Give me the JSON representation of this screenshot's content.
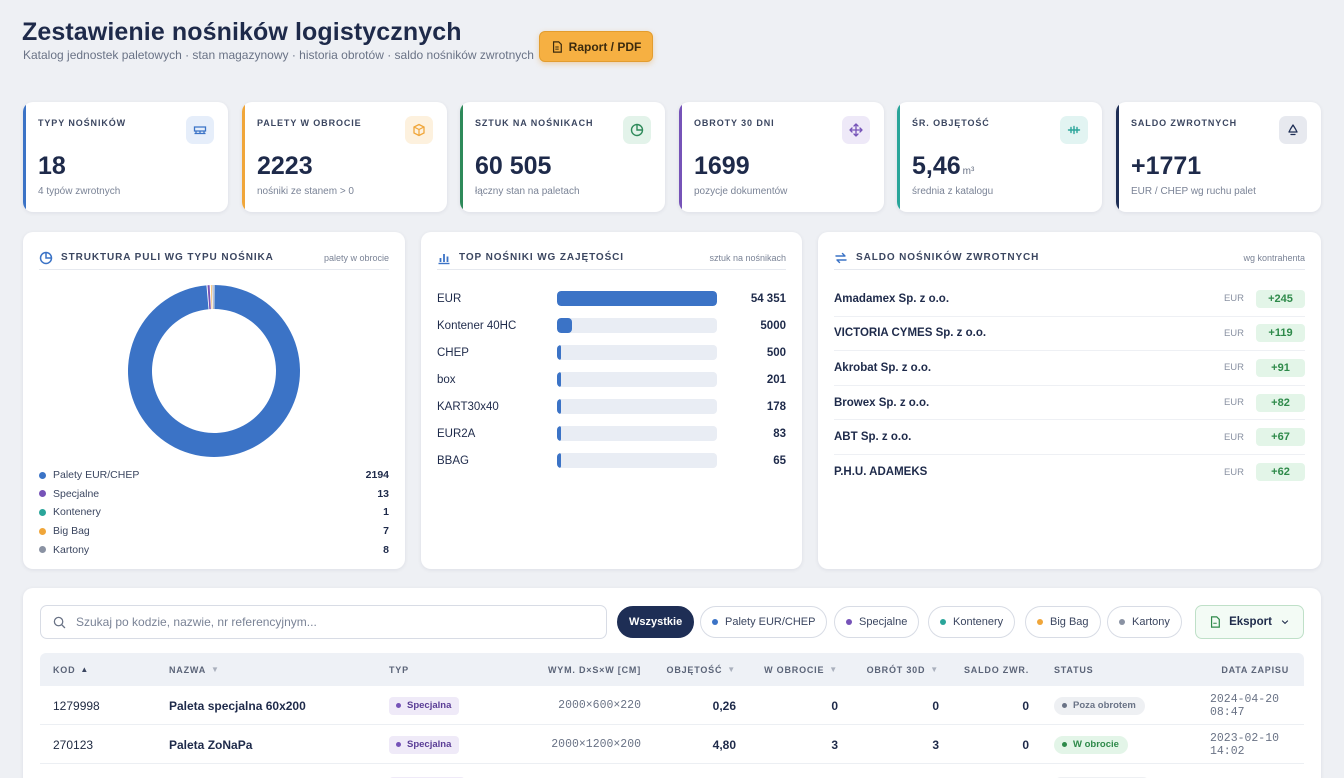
{
  "header": {
    "title": "Zestawienie nośników logistycznych",
    "subtitle": "Katalog jednostek paletowych · stan magazynowy · historia obrotów · saldo nośników zwrotnych",
    "report_button": "Raport / PDF"
  },
  "kpis": [
    {
      "label": "TYPY NOŚNIKÓW",
      "value": "18",
      "unit": "",
      "sub": "4 typów zwrotnych",
      "color": "#3b73c6",
      "icon": "pallet-icon"
    },
    {
      "label": "PALETY W OBROCIE",
      "value": "2223",
      "unit": "",
      "sub": "nośniki ze stanem > 0",
      "color": "#f0a63a",
      "icon": "box-icon"
    },
    {
      "label": "SZTUK NA NOŚNIKACH",
      "value": "60 505",
      "unit": "",
      "sub": "łączny stan na paletach",
      "color": "#2e8a5a",
      "icon": "pie-icon"
    },
    {
      "label": "OBROTY 30 DNI",
      "value": "1699",
      "unit": "",
      "sub": "pozycje dokumentów",
      "color": "#7653b8",
      "icon": "move-icon"
    },
    {
      "label": "ŚR. OBJĘTOŚĆ",
      "value": "5,46",
      "unit": "m³",
      "sub": "średnia z katalogu",
      "color": "#2aa59a",
      "icon": "measure-icon"
    },
    {
      "label": "SALDO ZWROTNYCH",
      "value": "+1771",
      "unit": "",
      "sub": "EUR / CHEP wg ruchu palet",
      "color": "#1e2e55",
      "icon": "recycle-icon"
    }
  ],
  "structure": {
    "title": "STRUKTURA PULI WG TYPU NOŚNIKA",
    "note": "palety w obrocie",
    "items": [
      {
        "name": "Palety EUR/CHEP",
        "value": 2194,
        "color": "#3b73c6"
      },
      {
        "name": "Specjalne",
        "value": 13,
        "color": "#7653b8"
      },
      {
        "name": "Kontenery",
        "value": 1,
        "color": "#2aa59a"
      },
      {
        "name": "Big Bag",
        "value": 7,
        "color": "#f0a63a"
      },
      {
        "name": "Kartony",
        "value": 8,
        "color": "#8a92a3"
      }
    ]
  },
  "top_carriers": {
    "title": "TOP NOŚNIKI WG ZAJĘTOŚCI",
    "note": "sztuk na nośnikach",
    "max": 54351,
    "items": [
      {
        "name": "EUR",
        "value": 54351,
        "label": "54 351"
      },
      {
        "name": "Kontener 40HC",
        "value": 5000,
        "label": "5000"
      },
      {
        "name": "CHEP",
        "value": 500,
        "label": "500"
      },
      {
        "name": "box",
        "value": 201,
        "label": "201"
      },
      {
        "name": "KART30x40",
        "value": 178,
        "label": "178"
      },
      {
        "name": "EUR2A",
        "value": 83,
        "label": "83"
      },
      {
        "name": "BBAG",
        "value": 65,
        "label": "65"
      }
    ]
  },
  "saldo": {
    "title": "SALDO NOŚNIKÓW ZWROTNYCH",
    "note": "wg kontrahenta",
    "items": [
      {
        "name": "Amadamex Sp. z o.o.",
        "currency": "EUR",
        "value": "+245"
      },
      {
        "name": "VICTORIA CYMES Sp. z o.o.",
        "currency": "EUR",
        "value": "+119"
      },
      {
        "name": "Akrobat Sp. z o.o.",
        "currency": "EUR",
        "value": "+91"
      },
      {
        "name": "Browex Sp. z o.o.",
        "currency": "EUR",
        "value": "+82"
      },
      {
        "name": "ABT Sp. z o.o.",
        "currency": "EUR",
        "value": "+67"
      },
      {
        "name": "P.H.U. ADAMEKS",
        "currency": "EUR",
        "value": "+62"
      }
    ]
  },
  "table": {
    "search_placeholder": "Szukaj po kodzie, nazwie, nr referencyjnym...",
    "filters": [
      {
        "label": "Wszystkie",
        "active": true,
        "dot": ""
      },
      {
        "label": "Palety EUR/CHEP",
        "active": false,
        "dot": "#3b73c6"
      },
      {
        "label": "Specjalne",
        "active": false,
        "dot": "#7653b8"
      },
      {
        "label": "Kontenery",
        "active": false,
        "dot": "#2aa59a"
      },
      {
        "label": "Big Bag",
        "active": false,
        "dot": "#f0a63a"
      },
      {
        "label": "Kartony",
        "active": false,
        "dot": "#8a92a3"
      }
    ],
    "export_label": "Eksport",
    "columns": [
      {
        "label": "KOD",
        "sort": "▲",
        "sort_on": true
      },
      {
        "label": "NAZWA",
        "sort": "▼",
        "sort_on": false
      },
      {
        "label": "TYP",
        "sort": "",
        "sort_on": false
      },
      {
        "label": "WYM. D×S×W [CM]",
        "sort": "",
        "sort_on": false
      },
      {
        "label": "OBJĘTOŚĆ",
        "sort": "▼",
        "sort_on": false
      },
      {
        "label": "W OBROCIE",
        "sort": "▼",
        "sort_on": false
      },
      {
        "label": "OBRÓT 30D",
        "sort": "▼",
        "sort_on": false
      },
      {
        "label": "SALDO ZWR.",
        "sort": "",
        "sort_on": false
      },
      {
        "label": "STATUS",
        "sort": "",
        "sort_on": false
      },
      {
        "label": "DATA ZAPISU",
        "sort": "",
        "sort_on": false
      }
    ],
    "rows": [
      {
        "code": "1279998",
        "name": "Paleta specjalna 60x200",
        "type": "Specjalna",
        "dims": "2000×600×220",
        "volume": "0,26",
        "in_circulation": "0",
        "turnover": "0",
        "saldo": "0",
        "status": "Poza obrotem",
        "status_kind": "off",
        "date": "2024-04-20 08:47"
      },
      {
        "code": "270123",
        "name": "Paleta ZoNaPa",
        "type": "Specjalna",
        "dims": "2000×1200×200",
        "volume": "4,80",
        "in_circulation": "3",
        "turnover": "3",
        "saldo": "0",
        "status": "W obrocie",
        "status_kind": "on",
        "date": "2023-02-10 14:02"
      }
    ]
  }
}
